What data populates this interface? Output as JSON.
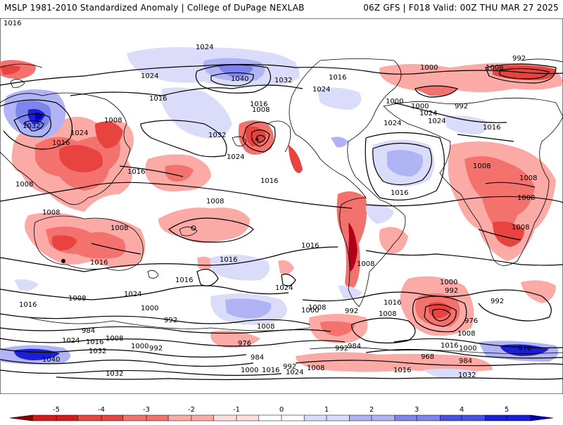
{
  "header": {
    "left_title": "MSLP 1981-2010 Standardized Anomaly | College of DuPage NEXLAB",
    "right_title": "06Z GFS | F018 Valid: 00Z THU MAR 27 2025"
  },
  "isobar_labels": [
    {
      "id": "l1",
      "text": "1024"
    },
    {
      "id": "l2",
      "text": "1024"
    },
    {
      "id": "l3",
      "text": "1040"
    },
    {
      "id": "l4",
      "text": "1032"
    },
    {
      "id": "l5",
      "text": "1016"
    },
    {
      "id": "l6",
      "text": "1024"
    },
    {
      "id": "l7",
      "text": "1016"
    },
    {
      "id": "l8",
      "text": "1008"
    },
    {
      "id": "l9",
      "text": "1016"
    },
    {
      "id": "l10",
      "text": "1032"
    },
    {
      "id": "l11",
      "text": "1024"
    },
    {
      "id": "l12",
      "text": "1016"
    },
    {
      "id": "l13",
      "text": "1008"
    },
    {
      "id": "l14",
      "text": "1032"
    },
    {
      "id": "l15",
      "text": "1024"
    },
    {
      "id": "l16",
      "text": "1016"
    },
    {
      "id": "l17",
      "text": "1024"
    },
    {
      "id": "l18",
      "text": "1016"
    },
    {
      "id": "l19",
      "text": "1008"
    },
    {
      "id": "l20",
      "text": "1008"
    },
    {
      "id": "l21",
      "text": "1008"
    },
    {
      "id": "l22",
      "text": "1008"
    },
    {
      "id": "l23",
      "text": "1016"
    },
    {
      "id": "l24",
      "text": "1016"
    },
    {
      "id": "l25",
      "text": "1016"
    },
    {
      "id": "l26",
      "text": "1024"
    },
    {
      "id": "l27",
      "text": "1016"
    },
    {
      "id": "l28",
      "text": "1024"
    },
    {
      "id": "l29",
      "text": "1016"
    },
    {
      "id": "l30",
      "text": "1008"
    },
    {
      "id": "l31",
      "text": "1000"
    },
    {
      "id": "l32",
      "text": "992"
    },
    {
      "id": "l33",
      "text": "1008"
    },
    {
      "id": "l34",
      "text": "1000"
    },
    {
      "id": "l35",
      "text": "992"
    },
    {
      "id": "l36",
      "text": "984"
    },
    {
      "id": "l37",
      "text": "1016"
    },
    {
      "id": "l38",
      "text": "1024"
    },
    {
      "id": "l39",
      "text": "1032"
    },
    {
      "id": "l40",
      "text": "1040"
    },
    {
      "id": "l41",
      "text": "1008"
    },
    {
      "id": "l42",
      "text": "1000"
    },
    {
      "id": "l43",
      "text": "992"
    },
    {
      "id": "l44",
      "text": "976"
    },
    {
      "id": "l45",
      "text": "984"
    },
    {
      "id": "l46",
      "text": "1000"
    },
    {
      "id": "l47",
      "text": "1016"
    },
    {
      "id": "l48",
      "text": "1024"
    },
    {
      "id": "l49",
      "text": "1032"
    },
    {
      "id": "l50",
      "text": "1008"
    },
    {
      "id": "l51",
      "text": "1016"
    },
    {
      "id": "l52",
      "text": "1008"
    },
    {
      "id": "l53",
      "text": "1000"
    },
    {
      "id": "l54",
      "text": "992"
    },
    {
      "id": "l55",
      "text": "992"
    },
    {
      "id": "l56",
      "text": "984"
    },
    {
      "id": "l57",
      "text": "976"
    },
    {
      "id": "l58",
      "text": "1008"
    },
    {
      "id": "l59",
      "text": "1016"
    },
    {
      "id": "l60",
      "text": "1000"
    },
    {
      "id": "l61",
      "text": "992"
    },
    {
      "id": "l62",
      "text": "976"
    },
    {
      "id": "l63",
      "text": "968"
    },
    {
      "id": "l64",
      "text": "984"
    },
    {
      "id": "l65",
      "text": "1016"
    },
    {
      "id": "l66",
      "text": "1032"
    },
    {
      "id": "l67",
      "text": "992"
    },
    {
      "id": "l68",
      "text": "1008"
    },
    {
      "id": "l69",
      "text": "1000"
    },
    {
      "id": "l70",
      "text": "1024"
    },
    {
      "id": "l71",
      "text": "1000"
    },
    {
      "id": "l72",
      "text": "992"
    },
    {
      "id": "l73",
      "text": "1000"
    },
    {
      "id": "l74",
      "text": "992"
    },
    {
      "id": "l75",
      "text": "1008"
    },
    {
      "id": "l76",
      "text": "1016"
    },
    {
      "id": "l77",
      "text": "1024"
    },
    {
      "id": "l78",
      "text": "1016"
    },
    {
      "id": "l79",
      "text": "1008"
    },
    {
      "id": "l80",
      "text": "1008"
    },
    {
      "id": "l81",
      "text": "1016"
    },
    {
      "id": "l82",
      "text": "1008"
    },
    {
      "id": "l83",
      "text": "1008"
    },
    {
      "id": "l84",
      "text": "1008"
    }
  ],
  "colorbar": {
    "ticks": [
      "-5",
      "-4",
      "-3",
      "-2",
      "-1",
      "0",
      "1",
      "2",
      "3",
      "4",
      "5"
    ],
    "colors": [
      "#b2001a",
      "#d7191c",
      "#e8433f",
      "#f4726e",
      "#fbaaa6",
      "#fde0de",
      "#ffffff",
      "#dadcfa",
      "#b0b4f5",
      "#7e84ee",
      "#4a50e2",
      "#1a1ed4",
      "#0000b4"
    ]
  }
}
